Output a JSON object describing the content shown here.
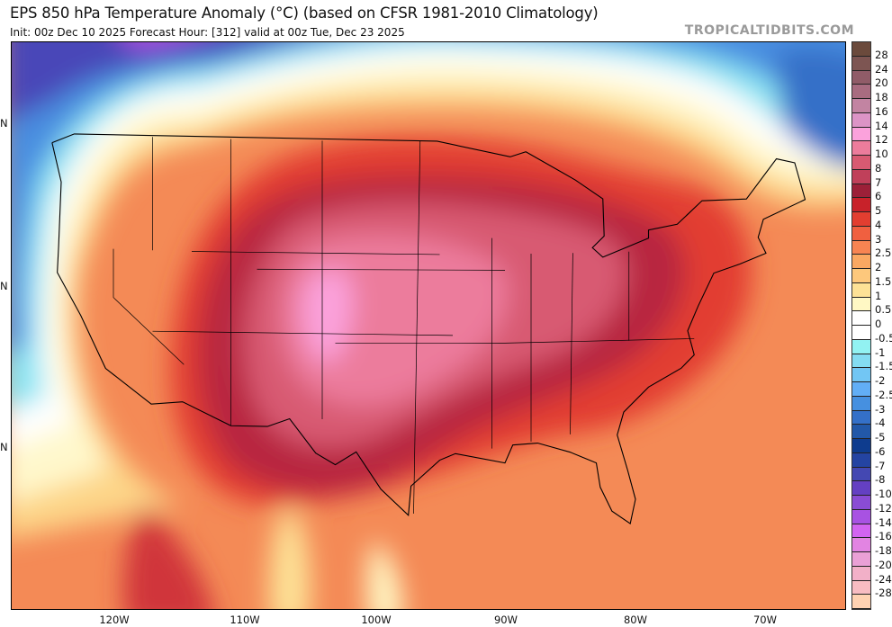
{
  "header": {
    "title": "EPS 850 hPa Temperature Anomaly (°C) (based on CFSR 1981-2010 Climatology)",
    "subtitle": "Init: 00z Dec 10 2025   Forecast Hour: [312]   valid at 00z Tue, Dec 23 2025",
    "brand": "TROPICALTIDBITS.COM"
  },
  "map": {
    "x_axis_labels": [
      "120W",
      "110W",
      "100W",
      "90W",
      "80W",
      "70W"
    ],
    "y_axis_labels": [
      "N",
      "N",
      "N"
    ]
  },
  "colorbar": {
    "unit": "°C",
    "labels": [
      "28",
      "24",
      "20",
      "18",
      "16",
      "14",
      "12",
      "10",
      "8",
      "7",
      "6",
      "5",
      "4",
      "3",
      "2.5",
      "2",
      "1.5",
      "1",
      "0.5",
      "0",
      "-0.5",
      "-1",
      "-1.5",
      "-2",
      "-2.5",
      "-3",
      "-4",
      "-5",
      "-6",
      "-7",
      "-8",
      "-10",
      "-12",
      "-14",
      "-16",
      "-18",
      "-20",
      "-24",
      "-28"
    ],
    "colors": [
      "#6b4a3c",
      "#7d5552",
      "#905c68",
      "#a86c80",
      "#c284a2",
      "#dc94c6",
      "#fba2dc",
      "#ec7c9c",
      "#d85a72",
      "#c0405a",
      "#9c2038",
      "#c8222a",
      "#e23e30",
      "#f06040",
      "#f78452",
      "#faa862",
      "#fdc87c",
      "#fde296",
      "#fff8c4",
      "#ffffff",
      "#ffffff",
      "#92f2f2",
      "#84dcf2",
      "#72c6f4",
      "#62aef6",
      "#4690e0",
      "#3470c8",
      "#2258a8",
      "#0e3c8e",
      "#2444a2",
      "#4448b2",
      "#6440c2",
      "#8a4cd4",
      "#a852e2",
      "#d264f0",
      "#e284e2",
      "#eaa0d6",
      "#f2b0c8",
      "#f8bcc2",
      "#ffd2b2"
    ]
  }
}
